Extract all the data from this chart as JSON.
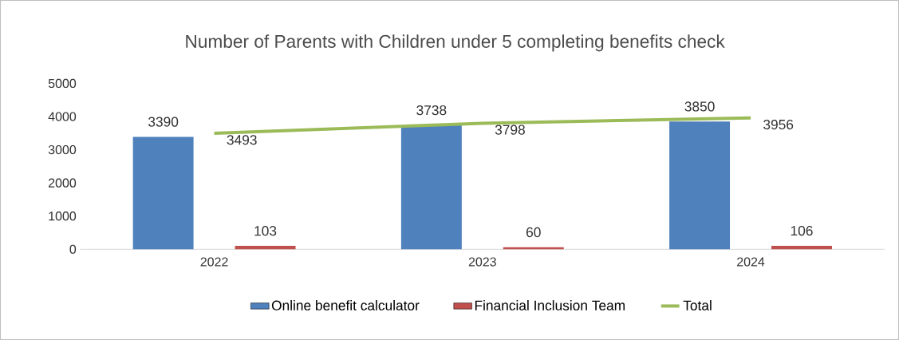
{
  "chart_data": {
    "type": "bar",
    "title": "Number of Parents with Children under 5 completing benefits check",
    "categories": [
      "2022",
      "2023",
      "2024"
    ],
    "series": [
      {
        "name": "Online benefit calculator",
        "color": "#4f81bd",
        "values": [
          3390,
          3738,
          3850
        ]
      },
      {
        "name": "Financial Inclusion Team",
        "color": "#c0504d",
        "values": [
          103,
          60,
          106
        ]
      },
      {
        "name": "Total",
        "type": "line",
        "color": "#9bbb59",
        "values": [
          3493,
          3798,
          3956
        ]
      }
    ],
    "ylim": [
      0,
      5000
    ],
    "yticks": [
      0,
      1000,
      2000,
      3000,
      4000,
      5000
    ],
    "data_labels": true,
    "legend": "bottom"
  }
}
